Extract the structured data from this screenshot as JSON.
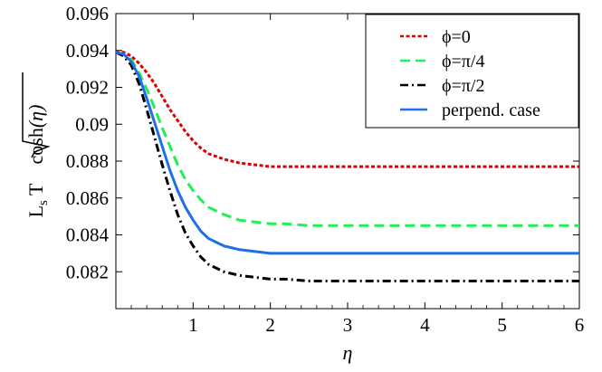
{
  "chart_data": {
    "type": "line",
    "xlabel": "η",
    "ylabel_main": "L",
    "ylabel_sub": "s",
    "ylabel_mid": " T ",
    "ylabel_root_fn": "cosh",
    "ylabel_root_arg": "(η)",
    "xlim": [
      0,
      6
    ],
    "ylim": [
      0.08,
      0.096
    ],
    "xticks": [
      1,
      2,
      3,
      4,
      5,
      6
    ],
    "yticks": [
      0.082,
      0.084,
      0.086,
      0.088,
      0.09,
      0.092,
      0.094,
      0.096
    ],
    "ytick_labels": [
      "0.082",
      "0.084",
      "0.086",
      "0.088",
      "0.09",
      "0.092",
      "0.094",
      "0.096"
    ],
    "legend_position": "top-right",
    "grid": false,
    "series": [
      {
        "name": "ϕ=0",
        "color": "#dd0000",
        "dash": "short-dash",
        "x": [
          0,
          0.1,
          0.2,
          0.3,
          0.4,
          0.5,
          0.6,
          0.7,
          0.8,
          0.9,
          1.0,
          1.1,
          1.2,
          1.4,
          1.6,
          1.8,
          2.0,
          2.2,
          2.5,
          3.0,
          3.5,
          4.0,
          5.0,
          6.0
        ],
        "y": [
          0.0939,
          0.0939,
          0.0937,
          0.0933,
          0.0928,
          0.0922,
          0.0915,
          0.0908,
          0.0902,
          0.0896,
          0.0891,
          0.0887,
          0.0884,
          0.0881,
          0.0879,
          0.0878,
          0.0877,
          0.0877,
          0.0877,
          0.0877,
          0.0877,
          0.0877,
          0.0877,
          0.0877
        ]
      },
      {
        "name": "ϕ=π/4",
        "color": "#22ee55",
        "dash": "long-dash",
        "x": [
          0,
          0.1,
          0.2,
          0.3,
          0.4,
          0.5,
          0.6,
          0.7,
          0.8,
          0.9,
          1.0,
          1.1,
          1.2,
          1.4,
          1.6,
          1.8,
          2.0,
          2.2,
          2.5,
          3.0,
          3.5,
          4.0,
          5.0,
          6.0
        ],
        "y": [
          0.0939,
          0.0938,
          0.0935,
          0.0928,
          0.0919,
          0.0909,
          0.0898,
          0.0888,
          0.0878,
          0.087,
          0.0864,
          0.0859,
          0.0855,
          0.0851,
          0.0848,
          0.0847,
          0.0846,
          0.0846,
          0.0845,
          0.0845,
          0.0845,
          0.0845,
          0.0845,
          0.0845
        ]
      },
      {
        "name": "ϕ=π/2",
        "color": "#000000",
        "dash": "dash-dot",
        "x": [
          0,
          0.1,
          0.2,
          0.3,
          0.4,
          0.5,
          0.6,
          0.7,
          0.8,
          0.9,
          1.0,
          1.1,
          1.2,
          1.4,
          1.6,
          1.8,
          2.0,
          2.2,
          2.5,
          3.0,
          3.5,
          4.0,
          5.0,
          6.0
        ],
        "y": [
          0.0939,
          0.0937,
          0.0932,
          0.0922,
          0.0908,
          0.0893,
          0.0878,
          0.0864,
          0.0851,
          0.0841,
          0.0834,
          0.0828,
          0.0824,
          0.082,
          0.0818,
          0.0817,
          0.0816,
          0.0816,
          0.0815,
          0.0815,
          0.0815,
          0.0815,
          0.0815,
          0.0815
        ]
      },
      {
        "name": "perpend. case",
        "color": "#1f6fe6",
        "dash": "solid",
        "x": [
          0,
          0.1,
          0.2,
          0.3,
          0.4,
          0.5,
          0.6,
          0.7,
          0.8,
          0.9,
          1.0,
          1.1,
          1.2,
          1.4,
          1.6,
          1.8,
          2.0,
          2.2,
          2.5,
          3.0,
          3.5,
          4.0,
          5.0,
          6.0
        ],
        "y": [
          0.0939,
          0.0938,
          0.0934,
          0.0926,
          0.0914,
          0.0901,
          0.0888,
          0.0875,
          0.0864,
          0.0855,
          0.0848,
          0.0842,
          0.0838,
          0.0834,
          0.0832,
          0.0831,
          0.083,
          0.083,
          0.083,
          0.083,
          0.083,
          0.083,
          0.083,
          0.083
        ]
      }
    ]
  }
}
